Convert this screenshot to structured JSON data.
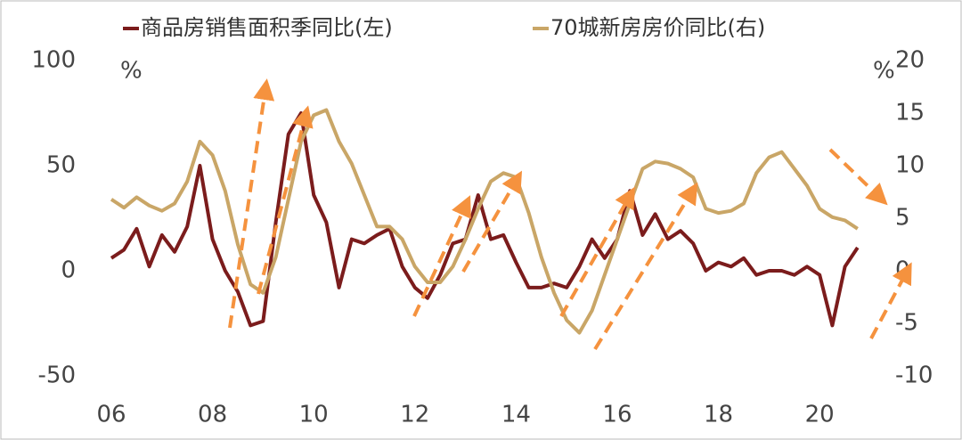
{
  "chart_data": {
    "type": "line",
    "legend_position": "top",
    "y_unit": "%",
    "y2_unit": "%",
    "x": [
      2006.0,
      2006.25,
      2006.5,
      2006.75,
      2007.0,
      2007.25,
      2007.5,
      2007.75,
      2008.0,
      2008.25,
      2008.5,
      2008.75,
      2009.0,
      2009.25,
      2009.5,
      2009.75,
      2010.0,
      2010.25,
      2010.5,
      2010.75,
      2011.0,
      2011.25,
      2011.5,
      2011.75,
      2012.0,
      2012.25,
      2012.5,
      2012.75,
      2013.0,
      2013.25,
      2013.5,
      2013.75,
      2014.0,
      2014.25,
      2014.5,
      2014.75,
      2015.0,
      2015.25,
      2015.5,
      2015.75,
      2016.0,
      2016.25,
      2016.5,
      2016.75,
      2017.0,
      2017.25,
      2017.5,
      2017.75,
      2018.0,
      2018.25,
      2018.5,
      2018.75,
      2019.0,
      2019.25,
      2019.5,
      2019.75,
      2020.0,
      2020.25,
      2020.5,
      2020.75
    ],
    "series": [
      {
        "name": "商品房销售面积季同比(左)",
        "color": "#7b1c1c",
        "values": [
          6,
          10,
          20,
          2,
          17,
          9,
          21,
          50,
          15,
          0,
          -10,
          -26,
          -24,
          23,
          65,
          75,
          36,
          23,
          -8,
          15,
          13,
          17,
          20,
          2,
          -8,
          -13,
          -2,
          13,
          15,
          36,
          15,
          17,
          4,
          -8,
          -8,
          -6,
          -8,
          2,
          15,
          6,
          15,
          38,
          17,
          27,
          15,
          19,
          13,
          0,
          4,
          2,
          6,
          -2,
          0,
          0,
          -2,
          2,
          -2,
          -26,
          2,
          11
        ]
      },
      {
        "name": "70城新房房价同比(右)",
        "color": "#c9a667",
        "axis": "y2",
        "values": [
          6.8,
          6,
          7,
          6.2,
          5.7,
          6.4,
          8.5,
          12.3,
          11,
          7.6,
          2.5,
          -1.3,
          -2.1,
          1.3,
          6.8,
          12.3,
          14.8,
          15.3,
          12.3,
          10.2,
          7.2,
          4.2,
          4.2,
          3,
          0.4,
          -1.1,
          -1.1,
          0.4,
          3,
          5.9,
          8.5,
          9.3,
          8.9,
          5.5,
          1.3,
          -2.1,
          -4.7,
          -5.9,
          -3.8,
          -0.4,
          3,
          6.4,
          9.7,
          10.4,
          10.2,
          9.7,
          8.9,
          5.9,
          5.5,
          5.7,
          6.4,
          9.3,
          10.8,
          11.3,
          9.7,
          8.1,
          5.9,
          5.1,
          4.8,
          4
        ]
      }
    ],
    "xlim": [
      2006,
      2021.3
    ],
    "xticks": [
      {
        "value": 2006,
        "label": "06"
      },
      {
        "value": 2008,
        "label": "08"
      },
      {
        "value": 2010,
        "label": "10"
      },
      {
        "value": 2012,
        "label": "12"
      },
      {
        "value": 2014,
        "label": "14"
      },
      {
        "value": 2016,
        "label": "16"
      },
      {
        "value": 2018,
        "label": "18"
      },
      {
        "value": 2020,
        "label": "20"
      }
    ],
    "ylim": [
      -50,
      100
    ],
    "yticks": [
      -50,
      0,
      50,
      100
    ],
    "y2lim": [
      -10,
      20
    ],
    "y2ticks": [
      -10,
      -5,
      0,
      5,
      10,
      15,
      20
    ]
  }
}
